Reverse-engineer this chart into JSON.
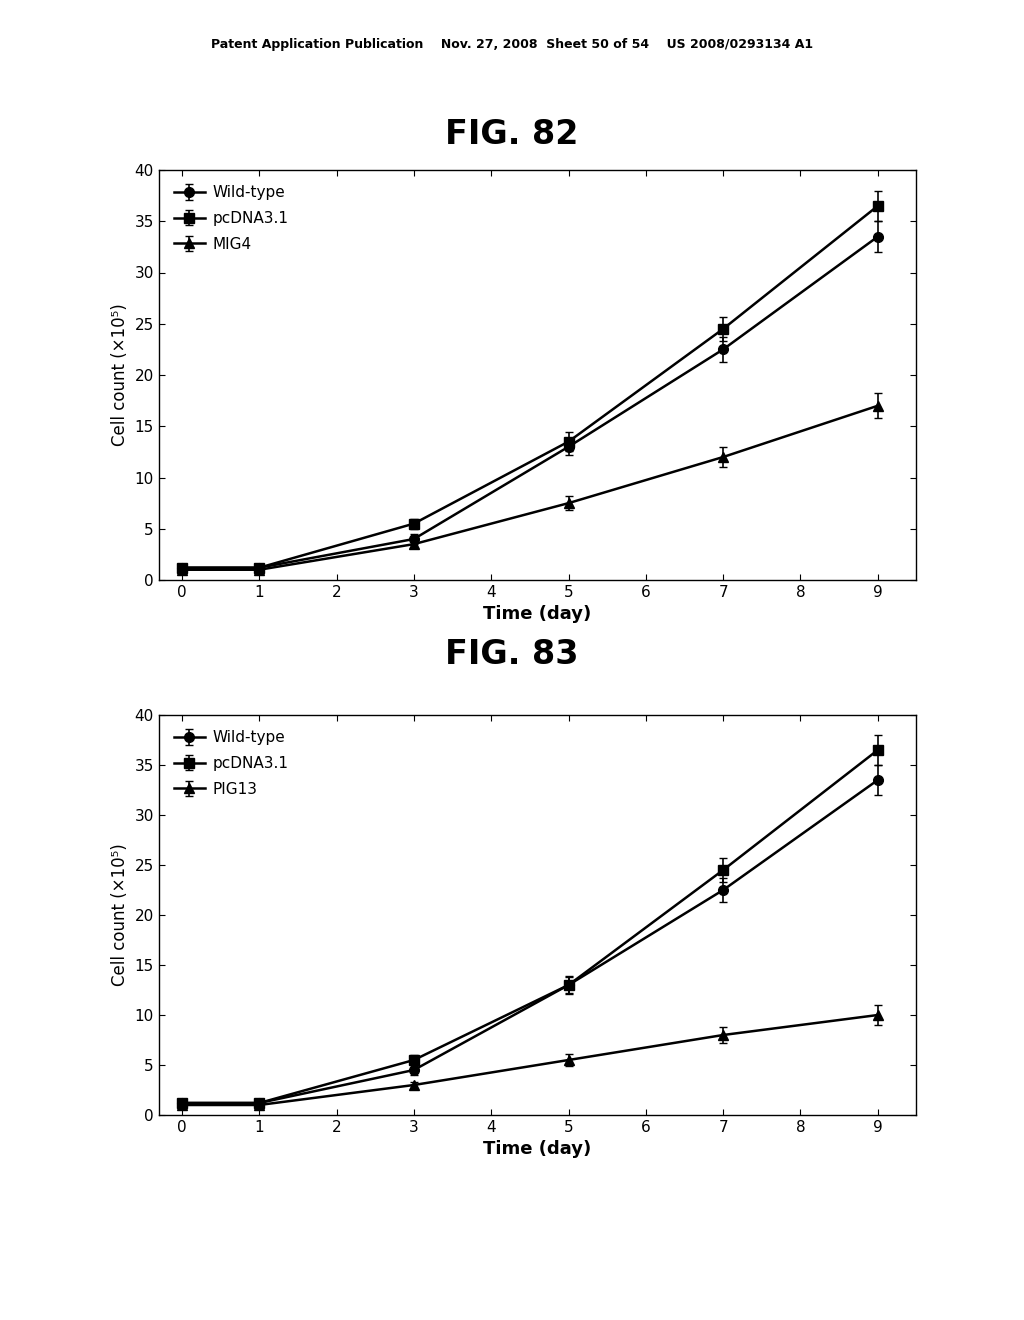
{
  "header_text": "Patent Application Publication    Nov. 27, 2008  Sheet 50 of 54    US 2008/0293134 A1",
  "fig1_title": "FIG. 82",
  "fig2_title": "FIG. 83",
  "x_values": [
    0,
    1,
    3,
    5,
    7,
    9
  ],
  "fig1": {
    "wild_type": {
      "y": [
        1.2,
        1.2,
        4.0,
        13.0,
        22.5,
        33.5
      ],
      "yerr": [
        0.2,
        0.15,
        0.5,
        0.8,
        1.2,
        1.5
      ]
    },
    "pcDNA3_1": {
      "y": [
        1.2,
        1.2,
        5.5,
        13.5,
        24.5,
        36.5
      ],
      "yerr": [
        0.2,
        0.15,
        0.5,
        0.9,
        1.2,
        1.5
      ]
    },
    "MIG4": {
      "y": [
        1.0,
        1.0,
        3.5,
        7.5,
        12.0,
        17.0
      ],
      "yerr": [
        0.15,
        0.1,
        0.4,
        0.7,
        1.0,
        1.2
      ]
    },
    "legend": [
      "Wild-type",
      "pcDNA3.1",
      "MIG4"
    ],
    "ylabel": "Cell count (×10⁵)",
    "xlabel": "Time (day)",
    "ylim": [
      0,
      40
    ],
    "yticks": [
      0,
      5,
      10,
      15,
      20,
      25,
      30,
      35,
      40
    ],
    "xticks": [
      0,
      1,
      2,
      3,
      4,
      5,
      6,
      7,
      8,
      9
    ]
  },
  "fig2": {
    "wild_type": {
      "y": [
        1.2,
        1.2,
        4.5,
        13.0,
        22.5,
        33.5
      ],
      "yerr": [
        0.2,
        0.15,
        0.5,
        0.8,
        1.2,
        1.5
      ]
    },
    "pcDNA3_1": {
      "y": [
        1.2,
        1.2,
        5.5,
        13.0,
        24.5,
        36.5
      ],
      "yerr": [
        0.2,
        0.15,
        0.5,
        0.9,
        1.2,
        1.5
      ]
    },
    "PIG13": {
      "y": [
        1.0,
        1.0,
        3.0,
        5.5,
        8.0,
        10.0
      ],
      "yerr": [
        0.15,
        0.1,
        0.35,
        0.6,
        0.8,
        1.0
      ]
    },
    "legend": [
      "Wild-type",
      "pcDNA3.1",
      "PIG13"
    ],
    "ylabel": "Cell count (×10⁵)",
    "xlabel": "Time (day)",
    "ylim": [
      0,
      40
    ],
    "yticks": [
      0,
      5,
      10,
      15,
      20,
      25,
      30,
      35,
      40
    ],
    "xticks": [
      0,
      1,
      2,
      3,
      4,
      5,
      6,
      7,
      8,
      9
    ]
  },
  "line_color": "#000000",
  "marker_circle": "o",
  "marker_square": "s",
  "marker_triangle": "^",
  "markersize": 7,
  "linewidth": 1.8,
  "capsize": 3,
  "elinewidth": 1.2,
  "header_fontsize": 9,
  "figtitle_fontsize": 24,
  "legend_fontsize": 11,
  "tick_fontsize": 11,
  "xlabel_fontsize": 13,
  "ylabel_fontsize": 12
}
